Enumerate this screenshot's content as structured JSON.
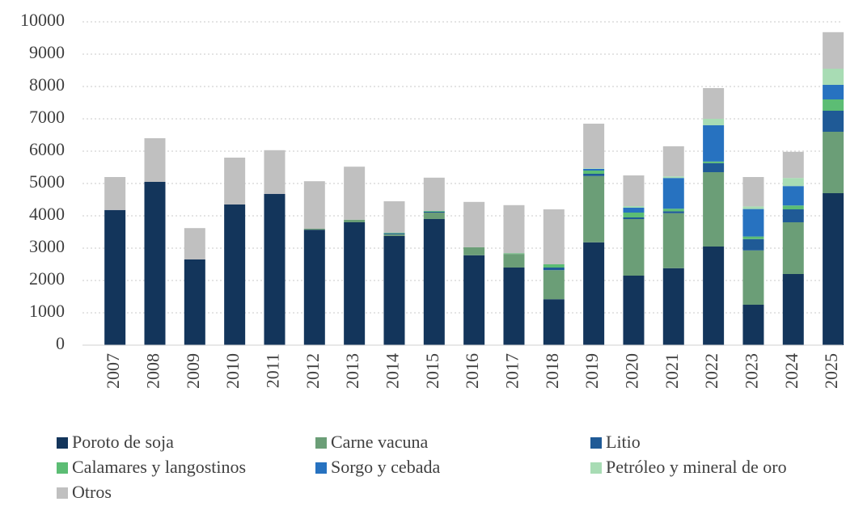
{
  "chart_data": {
    "type": "stacked_bar",
    "categories": [
      "2007",
      "2008",
      "2009",
      "2010",
      "2011",
      "2012",
      "2013",
      "2014",
      "2015",
      "2016",
      "2017",
      "2018",
      "2019",
      "2020",
      "2021",
      "2022",
      "2023",
      "2024",
      "2025"
    ],
    "series": [
      {
        "name": "Poroto de soja",
        "color": "#13355b",
        "values": [
          4180,
          5050,
          2650,
          4350,
          4680,
          3570,
          3800,
          3380,
          3900,
          2780,
          2400,
          1420,
          3180,
          2150,
          2380,
          3050,
          1250,
          2200,
          4700
        ]
      },
      {
        "name": "Carne vacuna",
        "color": "#6b9e77",
        "values": [
          0,
          0,
          0,
          0,
          0,
          30,
          80,
          50,
          200,
          250,
          420,
          900,
          2050,
          1750,
          1700,
          2300,
          1680,
          1600,
          1900
        ]
      },
      {
        "name": "Litio",
        "color": "#1f5a96",
        "values": [
          0,
          0,
          0,
          0,
          0,
          0,
          0,
          30,
          30,
          0,
          0,
          80,
          70,
          50,
          60,
          280,
          350,
          400,
          650
        ]
      },
      {
        "name": "Calamares y langostinos",
        "color": "#5cbd74",
        "values": [
          0,
          0,
          0,
          0,
          0,
          0,
          0,
          20,
          20,
          0,
          20,
          100,
          100,
          150,
          80,
          50,
          80,
          120,
          350
        ]
      },
      {
        "name": "Sorgo y cebada",
        "color": "#2772c0",
        "values": [
          0,
          0,
          0,
          0,
          0,
          0,
          0,
          0,
          0,
          0,
          0,
          0,
          50,
          150,
          950,
          1120,
          850,
          600,
          450
        ]
      },
      {
        "name": "Petróleo y mineral de oro",
        "color": "#a8dcb4",
        "values": [
          0,
          0,
          0,
          0,
          0,
          0,
          0,
          0,
          0,
          0,
          0,
          0,
          20,
          50,
          50,
          200,
          80,
          250,
          500
        ]
      },
      {
        "name": "Otros",
        "color": "#c0c0c0",
        "values": [
          1020,
          1350,
          970,
          1450,
          1350,
          1470,
          1640,
          970,
          1030,
          1400,
          1490,
          1700,
          1380,
          950,
          930,
          950,
          910,
          810,
          1130
        ]
      }
    ],
    "ylim": [
      0,
      10000
    ],
    "yticks": [
      0,
      1000,
      2000,
      3000,
      4000,
      5000,
      6000,
      7000,
      8000,
      9000,
      10000
    ],
    "grid": true
  }
}
